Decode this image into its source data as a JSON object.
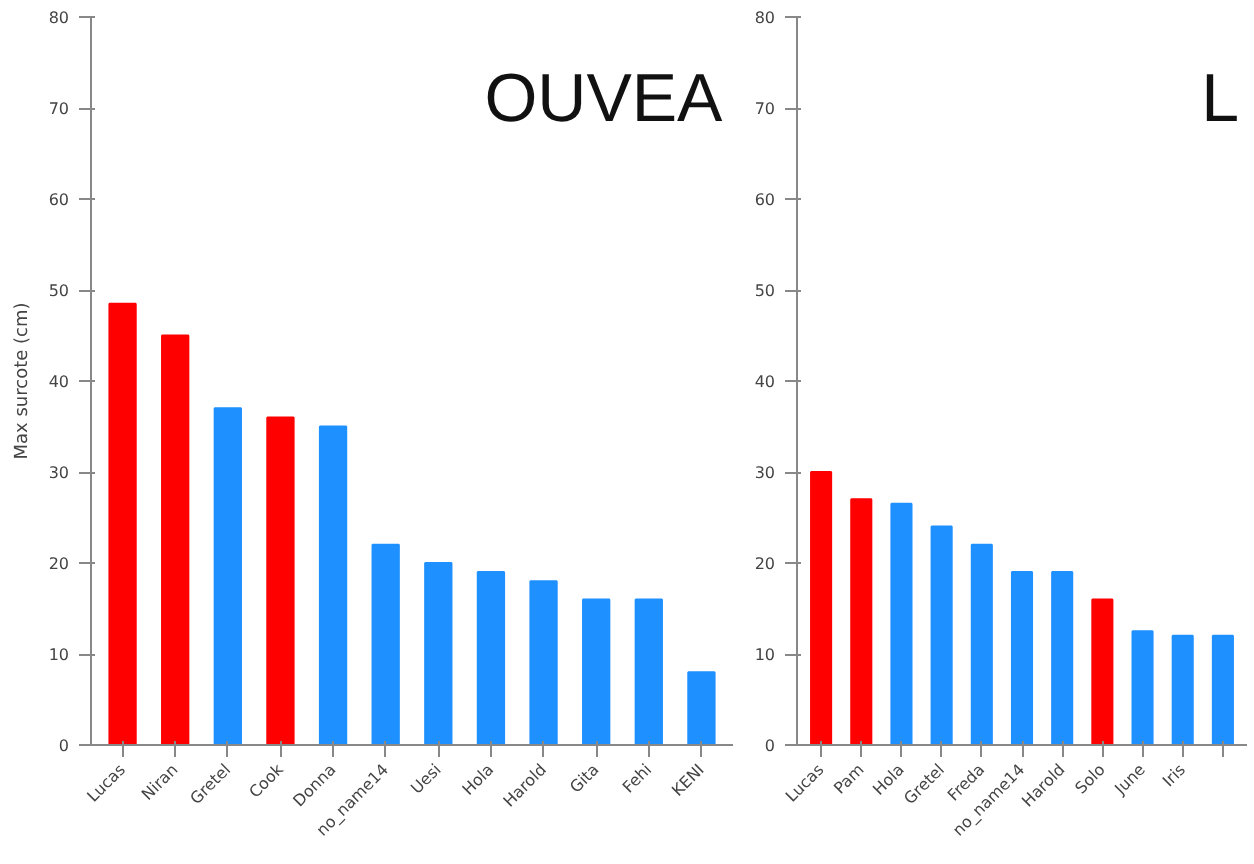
{
  "chart_data": [
    {
      "type": "bar",
      "title": "OUVEA",
      "ylabel": "Max surcote (cm)",
      "categories": [
        "Lucas",
        "Niran",
        "Gretel",
        "Cook",
        "Donna",
        "no_name14",
        "Uesi",
        "Hola",
        "Harold",
        "Gita",
        "Fehi",
        "KENI"
      ],
      "values": [
        48.5,
        45,
        37,
        36,
        35,
        22,
        20,
        19,
        18,
        16,
        16,
        8
      ],
      "colors": [
        "#ff0000",
        "#ff0000",
        "#1e90ff",
        "#ff0000",
        "#1e90ff",
        "#1e90ff",
        "#1e90ff",
        "#1e90ff",
        "#1e90ff",
        "#1e90ff",
        "#1e90ff",
        "#1e90ff"
      ],
      "ylim": [
        0,
        80
      ],
      "yticks": [
        0,
        10,
        20,
        30,
        40,
        50,
        60,
        70,
        80
      ],
      "grid": false
    },
    {
      "type": "bar",
      "title": "L",
      "categories": [
        "Lucas",
        "Pam",
        "Hola",
        "Gretel",
        "Freda",
        "no_name14",
        "Harold",
        "Solo",
        "June",
        "Iris",
        null
      ],
      "values": [
        30,
        27,
        26.5,
        24,
        22,
        19,
        19,
        16,
        12.5,
        12,
        12
      ],
      "colors": [
        "#ff0000",
        "#ff0000",
        "#1e90ff",
        "#1e90ff",
        "#1e90ff",
        "#1e90ff",
        "#1e90ff",
        "#ff0000",
        "#1e90ff",
        "#1e90ff",
        "#1e90ff"
      ],
      "ylim": [
        0,
        80
      ],
      "yticks": [
        0,
        10,
        20,
        30,
        40,
        50,
        60,
        70,
        80
      ],
      "grid": false
    }
  ]
}
